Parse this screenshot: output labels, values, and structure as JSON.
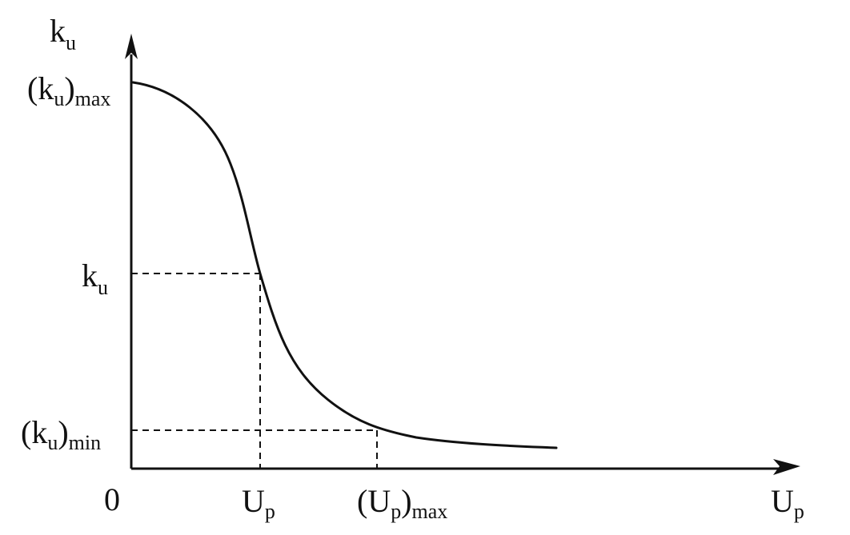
{
  "diagram": {
    "y_axis_label": {
      "main": "k",
      "sub": "u"
    },
    "x_axis_label": {
      "main": "U",
      "sub": "p"
    },
    "origin_label": "0",
    "y_ticks": [
      {
        "open": "(k",
        "sub": "u",
        "close": ")",
        "sub2": "max"
      },
      {
        "main": "k",
        "sub": "u"
      },
      {
        "open": "(k",
        "sub": "u",
        "close": ")",
        "sub2": "min"
      }
    ],
    "x_ticks": [
      {
        "main": "U",
        "sub": "p"
      },
      {
        "open": "(U",
        "sub": "p",
        "close": ")",
        "sub2": "max"
      }
    ],
    "colors": {
      "ink": "#111111",
      "background": "#ffffff"
    }
  }
}
